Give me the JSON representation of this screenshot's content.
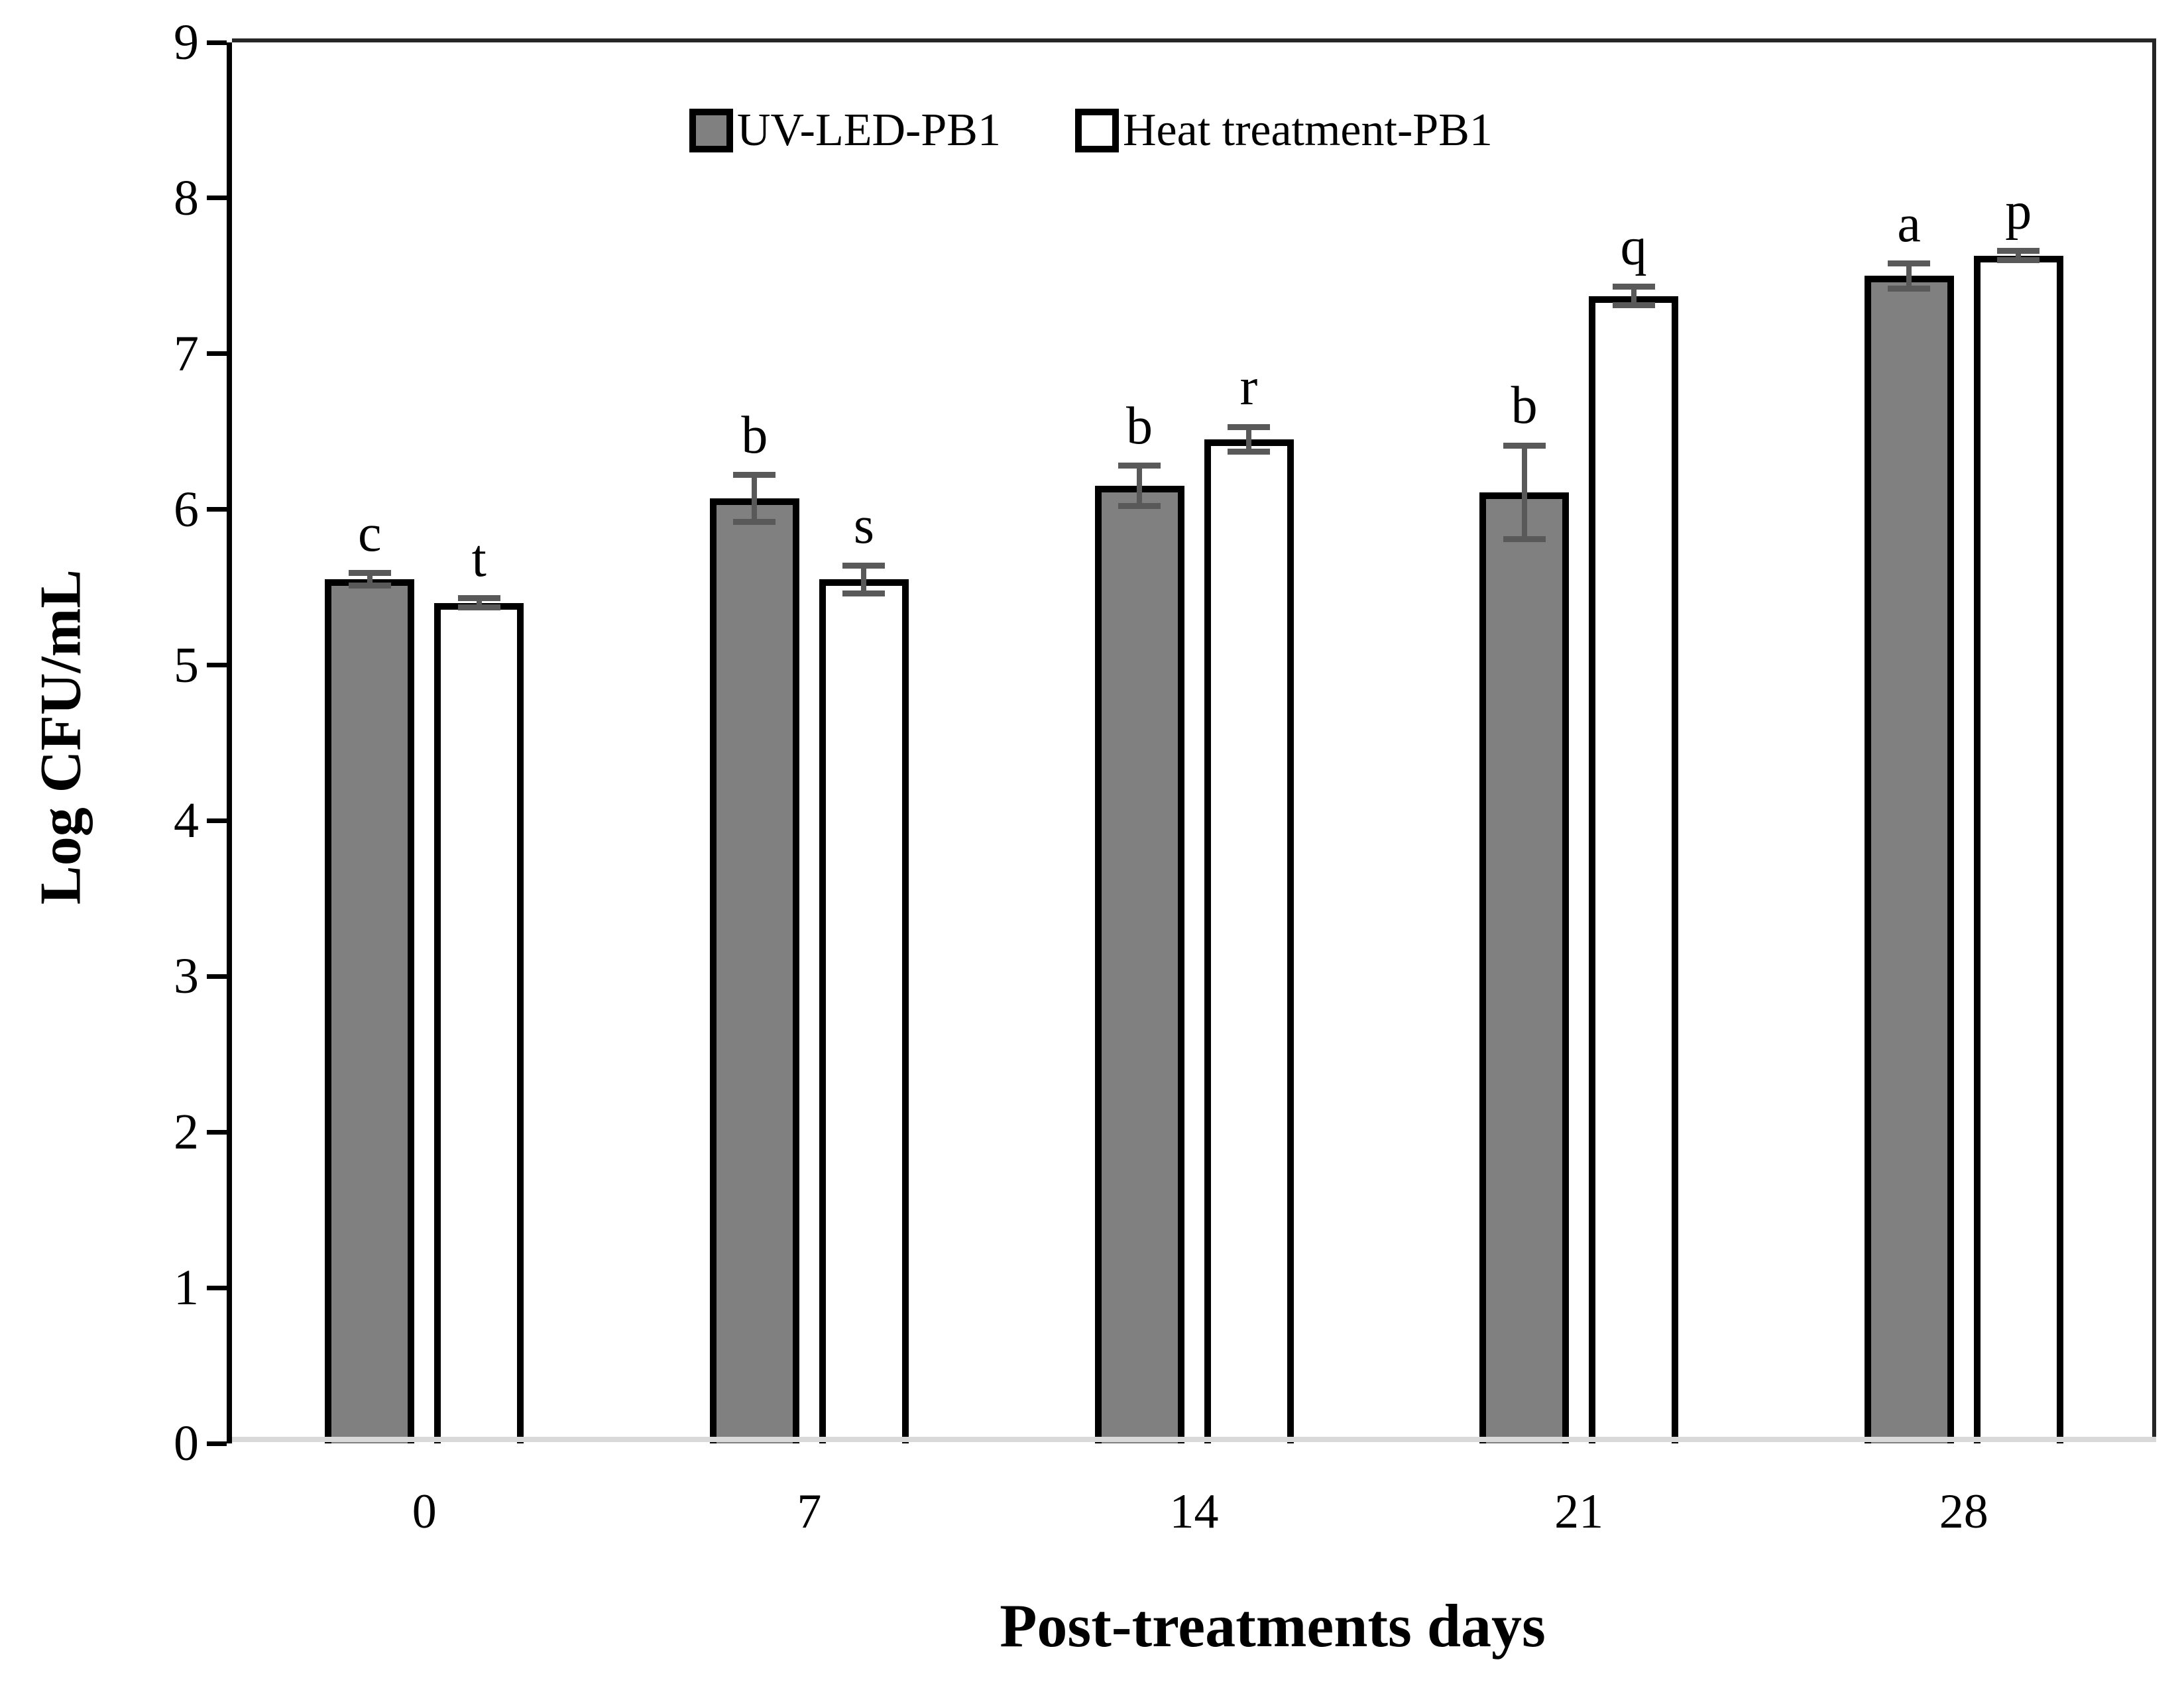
{
  "chart_data": {
    "type": "bar",
    "title": "",
    "xlabel": "Post-treatments days",
    "ylabel": "Log CFU/mL",
    "ylim": [
      0,
      9
    ],
    "y_ticks": [
      "0",
      "1",
      "2",
      "3",
      "4",
      "5",
      "6",
      "7",
      "8",
      "9"
    ],
    "categories": [
      "0",
      "7",
      "14",
      "21",
      "28"
    ],
    "series": [
      {
        "name": "UV-LED-PB1",
        "fill": "#808080",
        "values": [
          5.55,
          6.07,
          6.15,
          6.11,
          7.5
        ],
        "errors": [
          0.04,
          0.15,
          0.13,
          0.3,
          0.08
        ],
        "letters": [
          "c",
          "b",
          "b",
          "b",
          "a"
        ]
      },
      {
        "name": "Heat treatment-PB1",
        "fill": "#ffffff",
        "values": [
          5.4,
          5.55,
          6.45,
          7.37,
          7.63
        ],
        "errors": [
          0.03,
          0.09,
          0.08,
          0.06,
          0.03
        ],
        "letters": [
          "t",
          "s",
          "r",
          "q",
          "p"
        ]
      }
    ],
    "legend_position": "top-center",
    "grid": false
  },
  "colors": {
    "bar_border": "#000000",
    "error_bar": "#595959",
    "axis_frame": "#262626",
    "y_axis": "#000000",
    "baseline": "#d9d9d9",
    "text": "#000000",
    "background": "#ffffff"
  }
}
